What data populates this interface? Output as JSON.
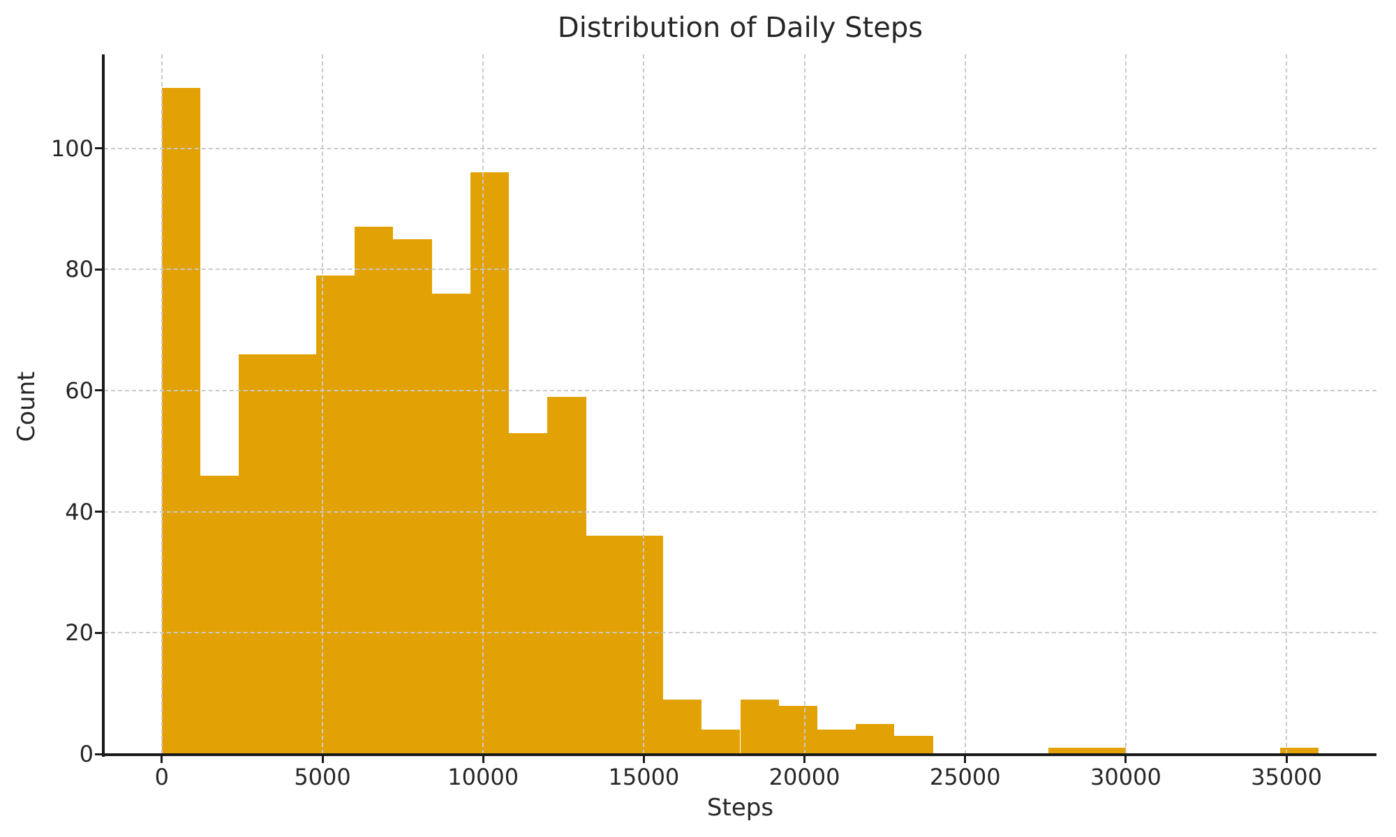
{
  "chart_data": {
    "type": "bar",
    "chart_kind": "histogram",
    "title": "Distribution of Daily Steps",
    "xlabel": "Steps",
    "ylabel": "Count",
    "bar_color": "#e2a206",
    "text_color": "#262626",
    "spine_color": "#1a1a1a",
    "grid_color": "#c9c9c9",
    "grid_style": "dashed",
    "grid_above_bars": true,
    "bin_start": 0,
    "bin_width": 1200,
    "counts": [
      110,
      46,
      66,
      66,
      79,
      87,
      85,
      76,
      96,
      53,
      59,
      36,
      36,
      9,
      4,
      9,
      8,
      4,
      5,
      3,
      0,
      0,
      0,
      1,
      1,
      0,
      0,
      0,
      0,
      1
    ],
    "x_ticks": [
      0,
      5000,
      10000,
      15000,
      20000,
      25000,
      30000,
      35000
    ],
    "y_ticks": [
      0,
      20,
      40,
      60,
      80,
      100
    ],
    "xlim": [
      -1800,
      37800
    ],
    "ylim": [
      0,
      115.5
    ]
  }
}
